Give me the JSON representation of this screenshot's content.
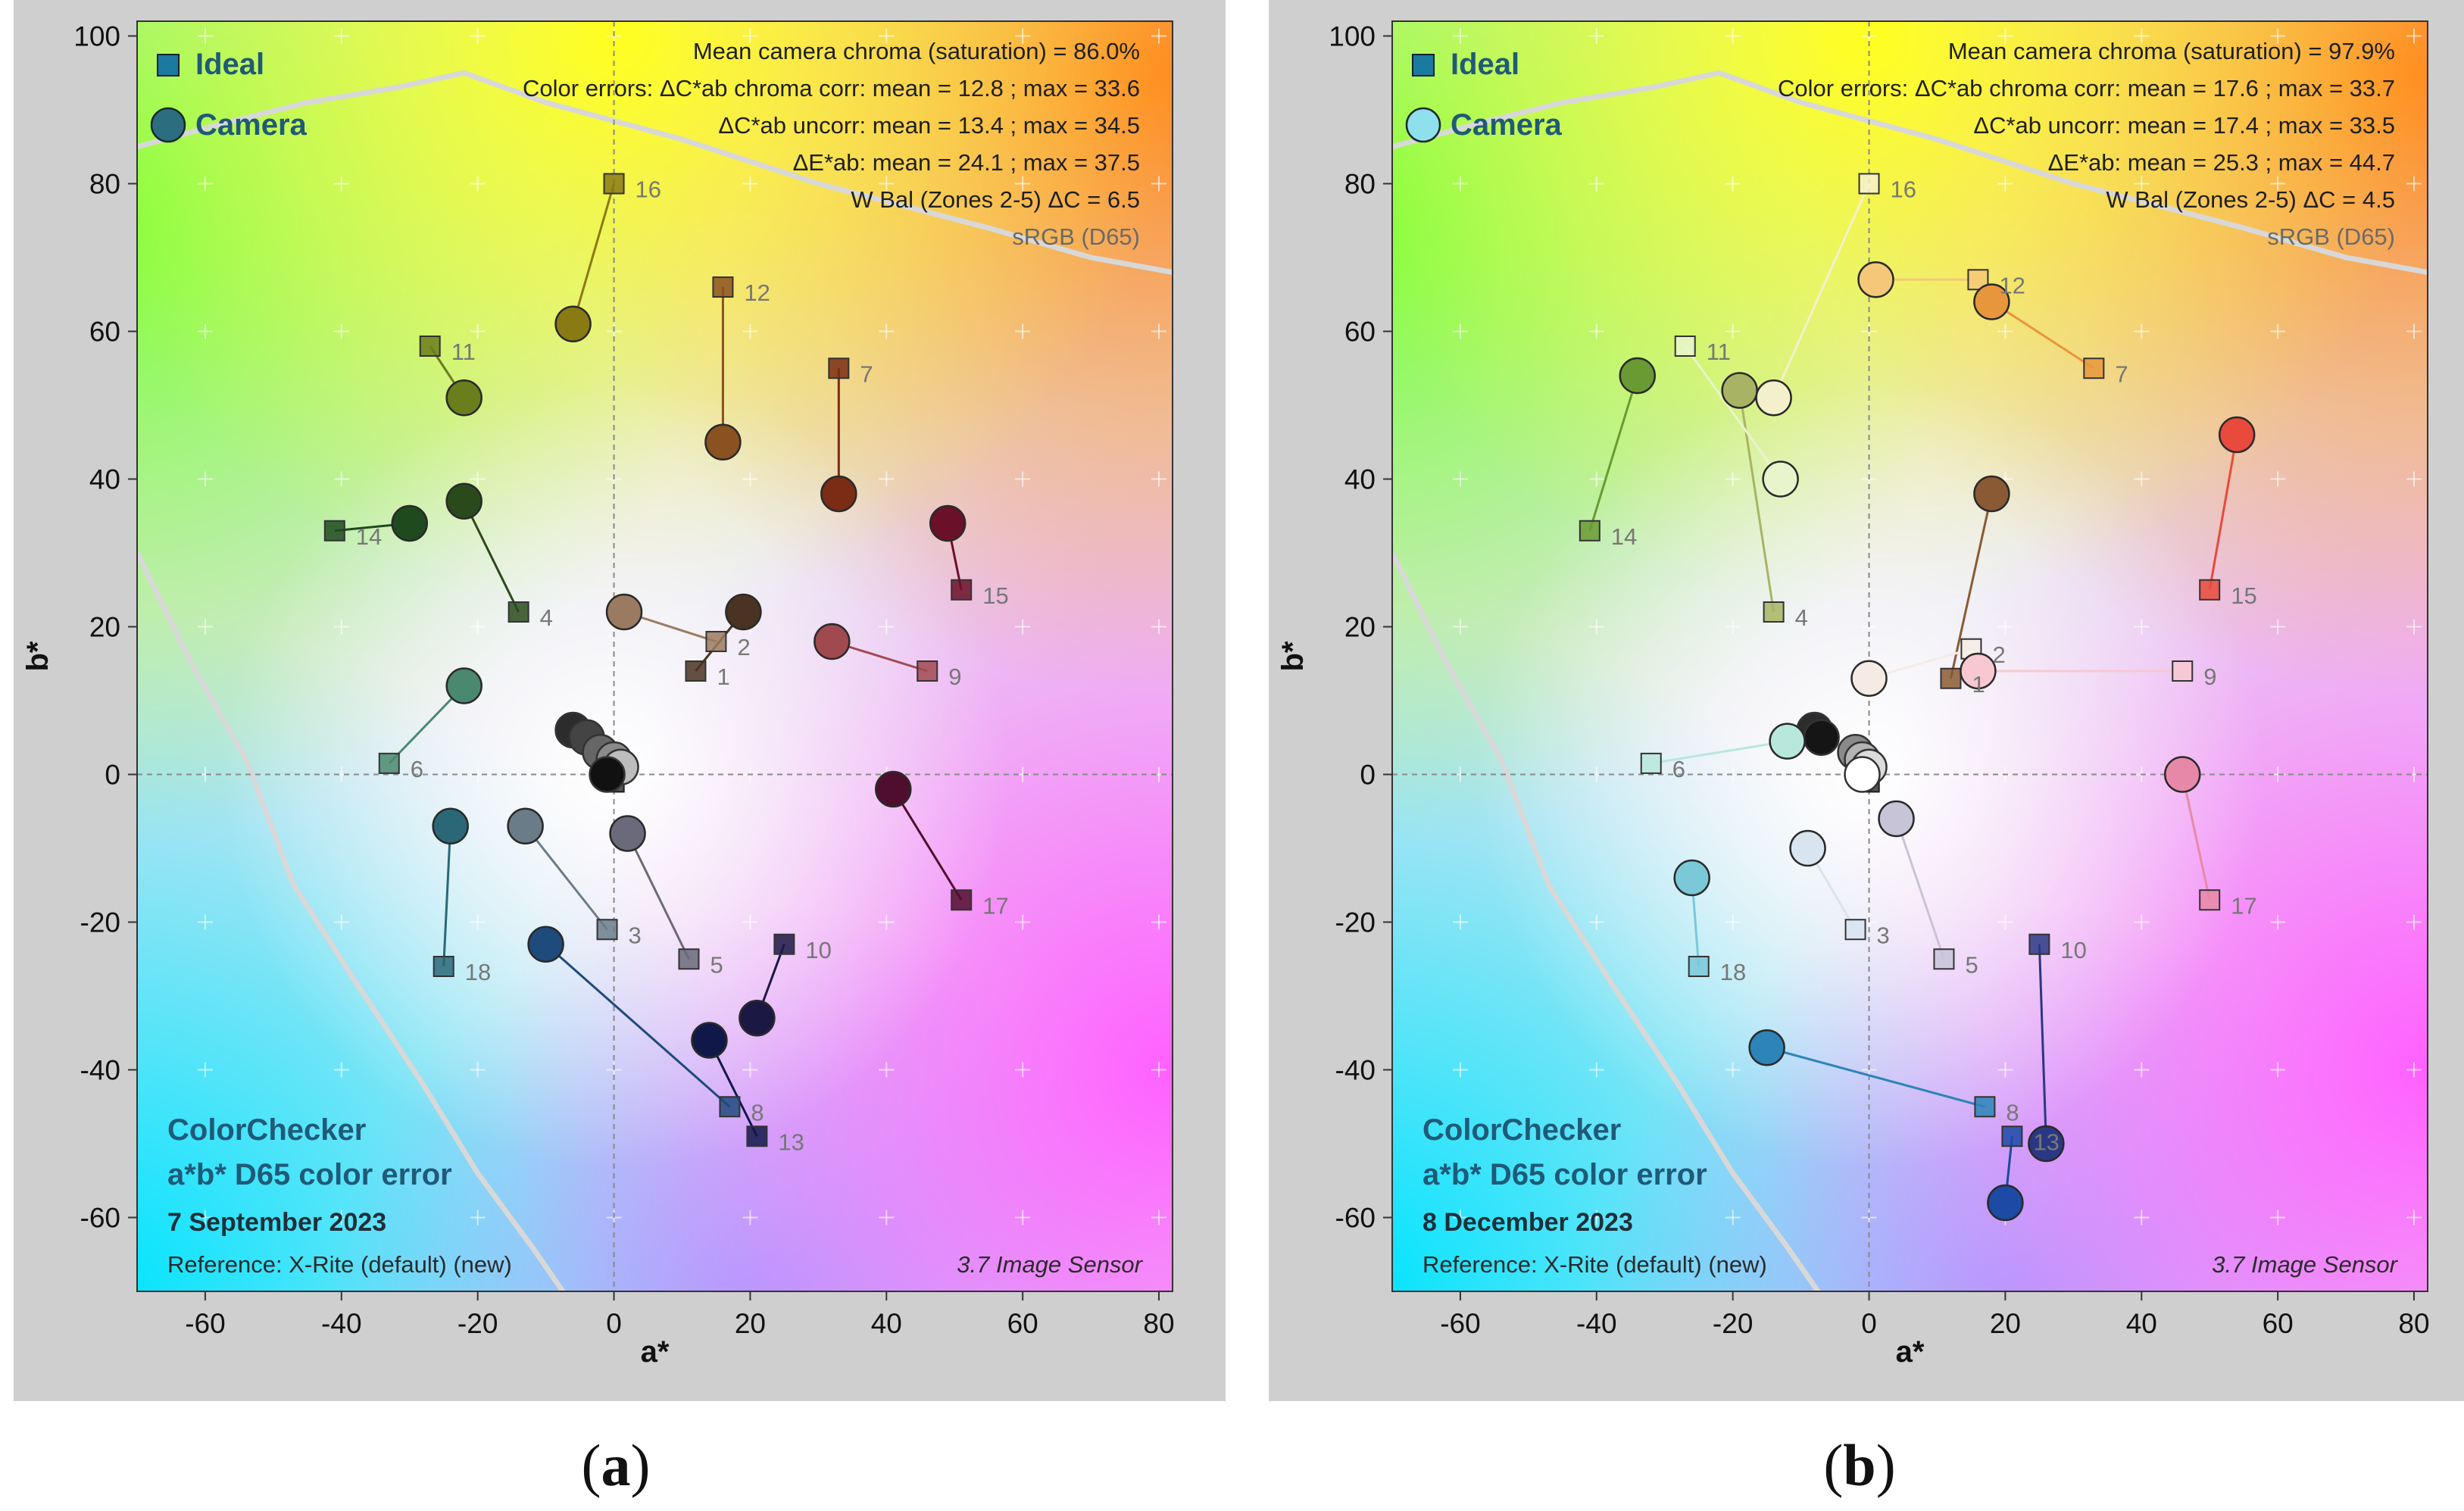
{
  "chart_data": [
    {
      "type": "scatter",
      "panel": "a",
      "caption_letter": "a",
      "xlabel": "a*",
      "ylabel": "b*",
      "xlim": [
        -70,
        82
      ],
      "ylim": [
        -70,
        102
      ],
      "xticks": [
        -60,
        -40,
        -20,
        0,
        20,
        40,
        60,
        80
      ],
      "yticks": [
        -60,
        -40,
        -20,
        0,
        20,
        40,
        60,
        80,
        100
      ],
      "legend": {
        "ideal": "Ideal",
        "camera": "Camera",
        "placement": "top-left"
      },
      "info_lines": [
        "Mean camera chroma (saturation) = 86.0%",
        "Color errors: ΔC*ab chroma corr:  mean = 12.8 ;  max = 33.6",
        "ΔC*ab uncorr:  mean = 13.4 ;  max = 34.5",
        "ΔE*ab:  mean = 24.1 ;  max = 37.5",
        "W Bal (Zones 2-5) ΔC = 6.5",
        "sRGB (D65)"
      ],
      "title_lines": [
        "ColorChecker",
        "a*b* D65 color error"
      ],
      "date": "7 September 2023",
      "reference": "Reference: X-Rite (default) (new)",
      "sensor": "3.7  Image Sensor",
      "series": [
        {
          "label": "1",
          "ideal": [
            12,
            14
          ],
          "camera": [
            19,
            22
          ],
          "color": "#4a3322"
        },
        {
          "label": "2",
          "ideal": [
            15,
            18
          ],
          "camera": [
            1.5,
            22
          ],
          "color": "#9a7a60"
        },
        {
          "label": "3",
          "ideal": [
            -1,
            -21
          ],
          "camera": [
            -13,
            -7
          ],
          "color": "#6a7c88"
        },
        {
          "label": "4",
          "ideal": [
            -14,
            22
          ],
          "camera": [
            -22,
            37
          ],
          "color": "#2a4a1c"
        },
        {
          "label": "5",
          "ideal": [
            11,
            -25
          ],
          "camera": [
            2,
            -8
          ],
          "color": "#6a6a7a"
        },
        {
          "label": "6",
          "ideal": [
            -33,
            1.5
          ],
          "camera": [
            -22,
            12
          ],
          "color": "#4a8870"
        },
        {
          "label": "7",
          "ideal": [
            33,
            55
          ],
          "camera": [
            33,
            38
          ],
          "color": "#7a2c14"
        },
        {
          "label": "8",
          "ideal": [
            17,
            -45
          ],
          "camera": [
            -10,
            -23
          ],
          "color": "#1e4a7c"
        },
        {
          "label": "9",
          "ideal": [
            46,
            14
          ],
          "camera": [
            32,
            18
          ],
          "color": "#a04a50"
        },
        {
          "label": "10",
          "ideal": [
            25,
            -23
          ],
          "camera": [
            21,
            -33
          ],
          "color": "#1c1844"
        },
        {
          "label": "11",
          "ideal": [
            -27,
            58
          ],
          "camera": [
            -22,
            51
          ],
          "color": "#6a7e1c"
        },
        {
          "label": "12",
          "ideal": [
            16,
            66
          ],
          "camera": [
            16,
            45
          ],
          "color": "#8a5220"
        },
        {
          "label": "13",
          "ideal": [
            21,
            -49
          ],
          "camera": [
            14,
            -36
          ],
          "color": "#10184a"
        },
        {
          "label": "14",
          "ideal": [
            -41,
            33
          ],
          "camera": [
            -30,
            34
          ],
          "color": "#1e4a1e"
        },
        {
          "label": "15",
          "ideal": [
            51,
            25
          ],
          "camera": [
            49,
            34
          ],
          "color": "#6a1028"
        },
        {
          "label": "16",
          "ideal": [
            0,
            80
          ],
          "camera": [
            -6,
            61
          ],
          "color": "#8a7a14"
        },
        {
          "label": "17",
          "ideal": [
            51,
            -17
          ],
          "camera": [
            41,
            -2
          ],
          "color": "#500e2e"
        },
        {
          "label": "18",
          "ideal": [
            -25,
            -26
          ],
          "camera": [
            -24,
            -7
          ],
          "color": "#2a6878"
        }
      ],
      "neutrals": [
        {
          "ideal": [
            0,
            -1
          ],
          "camera": [
            -6,
            6
          ],
          "color": "#2c2c2c"
        },
        {
          "ideal": [
            0,
            -1
          ],
          "camera": [
            -4,
            5
          ],
          "color": "#444444"
        },
        {
          "ideal": [
            0,
            -1
          ],
          "camera": [
            -2,
            3
          ],
          "color": "#666666"
        },
        {
          "ideal": [
            0,
            -1
          ],
          "camera": [
            0,
            2
          ],
          "color": "#8a8a8a"
        },
        {
          "ideal": [
            0,
            -1
          ],
          "camera": [
            1,
            1
          ],
          "color": "#bdbdbd"
        },
        {
          "ideal": [
            0,
            -1
          ],
          "camera": [
            -1,
            0
          ],
          "color": "#111111"
        }
      ]
    },
    {
      "type": "scatter",
      "panel": "b",
      "caption_letter": "b",
      "xlabel": "a*",
      "ylabel": "b*",
      "xlim": [
        -70,
        82
      ],
      "ylim": [
        -70,
        102
      ],
      "xticks": [
        -60,
        -40,
        -20,
        0,
        20,
        40,
        60,
        80
      ],
      "yticks": [
        -60,
        -40,
        -20,
        0,
        20,
        40,
        60,
        80,
        100
      ],
      "legend": {
        "ideal": "Ideal",
        "camera": "Camera",
        "placement": "top-left"
      },
      "info_lines": [
        "Mean camera chroma (saturation) = 97.9%",
        "Color errors: ΔC*ab chroma corr:  mean = 17.6 ;  max = 33.7",
        "ΔC*ab uncorr:  mean = 17.4 ;  max = 33.5",
        "ΔE*ab:  mean = 25.3 ;  max = 44.7",
        "W Bal (Zones 2-5) ΔC = 4.5",
        "sRGB (D65)"
      ],
      "title_lines": [
        "ColorChecker",
        "a*b* D65 color error"
      ],
      "date": "8 December 2023",
      "reference": "Reference: X-Rite (default) (new)",
      "sensor": "3.7  Image Sensor",
      "series": [
        {
          "label": "1",
          "ideal": [
            12,
            13
          ],
          "camera": [
            18,
            38
          ],
          "color": "#8a5a34"
        },
        {
          "label": "2",
          "ideal": [
            15,
            17
          ],
          "camera": [
            0,
            13
          ],
          "color": "#f4ece4"
        },
        {
          "label": "3",
          "ideal": [
            -2,
            -21
          ],
          "camera": [
            -9,
            -10
          ],
          "color": "#d8e4f0"
        },
        {
          "label": "4",
          "ideal": [
            -14,
            22
          ],
          "camera": [
            -19,
            52
          ],
          "color": "#a8b464"
        },
        {
          "label": "5",
          "ideal": [
            11,
            -25
          ],
          "camera": [
            4,
            -6
          ],
          "color": "#c8c4d8"
        },
        {
          "label": "6",
          "ideal": [
            -32,
            1.5
          ],
          "camera": [
            -12,
            4.5
          ],
          "color": "#b8e8dc"
        },
        {
          "label": "7",
          "ideal": [
            33,
            55
          ],
          "camera": [
            18,
            64
          ],
          "color": "#e8963c"
        },
        {
          "label": "8",
          "ideal": [
            17,
            -45
          ],
          "camera": [
            -15,
            -37
          ],
          "color": "#2c84b8"
        },
        {
          "label": "9",
          "ideal": [
            46,
            14
          ],
          "camera": [
            16,
            14
          ],
          "color": "#f8c8d0"
        },
        {
          "label": "10",
          "ideal": [
            25,
            -23
          ],
          "camera": [
            26,
            -50
          ],
          "color": "#2a3884"
        },
        {
          "label": "11",
          "ideal": [
            -27,
            58
          ],
          "camera": [
            -13,
            40
          ],
          "color": "#e8f4cc"
        },
        {
          "label": "12",
          "ideal": [
            16,
            67
          ],
          "camera": [
            1,
            67
          ],
          "color": "#f4c878"
        },
        {
          "label": "13",
          "ideal": [
            21,
            -49
          ],
          "camera": [
            20,
            -58
          ],
          "color": "#1c4aa4"
        },
        {
          "label": "14",
          "ideal": [
            -41,
            33
          ],
          "camera": [
            -34,
            54
          ],
          "color": "#6a9a34"
        },
        {
          "label": "15",
          "ideal": [
            50,
            25
          ],
          "camera": [
            54,
            46
          ],
          "color": "#e84a3c"
        },
        {
          "label": "16",
          "ideal": [
            0,
            80
          ],
          "camera": [
            -14,
            51
          ],
          "color": "#f4f0cc"
        },
        {
          "label": "17",
          "ideal": [
            50,
            -17
          ],
          "camera": [
            46,
            0
          ],
          "color": "#e888a8"
        },
        {
          "label": "18",
          "ideal": [
            -25,
            -26
          ],
          "camera": [
            -26,
            -14
          ],
          "color": "#7ac8d8"
        }
      ],
      "neutrals": [
        {
          "ideal": [
            0,
            -1
          ],
          "camera": [
            -8,
            6
          ],
          "color": "#2c2c2c"
        },
        {
          "ideal": [
            0,
            -1
          ],
          "camera": [
            -7,
            5
          ],
          "color": "#151515"
        },
        {
          "ideal": [
            0,
            -1
          ],
          "camera": [
            -2,
            3
          ],
          "color": "#8a8a8a"
        },
        {
          "ideal": [
            0,
            -1
          ],
          "camera": [
            -1,
            2
          ],
          "color": "#b4b4b4"
        },
        {
          "ideal": [
            0,
            -1
          ],
          "camera": [
            0,
            1
          ],
          "color": "#dcdcdc"
        },
        {
          "ideal": [
            0,
            -1
          ],
          "camera": [
            -1,
            0
          ],
          "color": "#ffffff"
        }
      ]
    }
  ]
}
